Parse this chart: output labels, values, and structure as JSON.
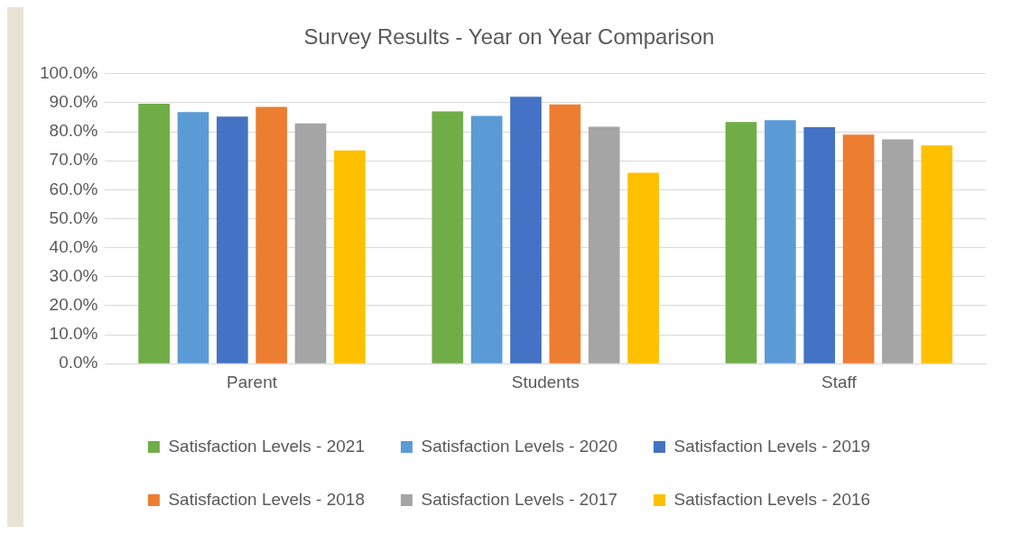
{
  "chart_data": {
    "type": "bar",
    "title": "Survey Results - Year on Year Comparison",
    "categories": [
      "Parent",
      "Students",
      "Staff"
    ],
    "series": [
      {
        "name": "Satisfaction Levels - 2021",
        "color": "#70ad47",
        "values": [
          89.7,
          87.0,
          83.4
        ]
      },
      {
        "name": "Satisfaction Levels - 2020",
        "color": "#5b9bd5",
        "values": [
          86.8,
          85.5,
          84.0
        ]
      },
      {
        "name": "Satisfaction Levels - 2019",
        "color": "#4472c4",
        "values": [
          85.2,
          92.1,
          81.6
        ]
      },
      {
        "name": "Satisfaction Levels - 2018",
        "color": "#ed7d31",
        "values": [
          88.6,
          89.4,
          79.0
        ]
      },
      {
        "name": "Satisfaction Levels - 2017",
        "color": "#a5a5a5",
        "values": [
          82.9,
          81.7,
          77.4
        ]
      },
      {
        "name": "Satisfaction Levels - 2016",
        "color": "#ffc000",
        "values": [
          73.6,
          65.9,
          75.3
        ]
      }
    ],
    "ylim": [
      0,
      100
    ],
    "yticks": [
      {
        "value": 0,
        "label": "0.0%"
      },
      {
        "value": 10,
        "label": "10.0%"
      },
      {
        "value": 20,
        "label": "20.0%"
      },
      {
        "value": 30,
        "label": "30.0%"
      },
      {
        "value": 40,
        "label": "40.0%"
      },
      {
        "value": 50,
        "label": "50.0%"
      },
      {
        "value": 60,
        "label": "60.0%"
      },
      {
        "value": 70,
        "label": "70.0%"
      },
      {
        "value": 80,
        "label": "80.0%"
      },
      {
        "value": 90,
        "label": "90.0%"
      },
      {
        "value": 100,
        "label": "100.0%"
      }
    ],
    "grid": "y",
    "legend": "bottom"
  }
}
